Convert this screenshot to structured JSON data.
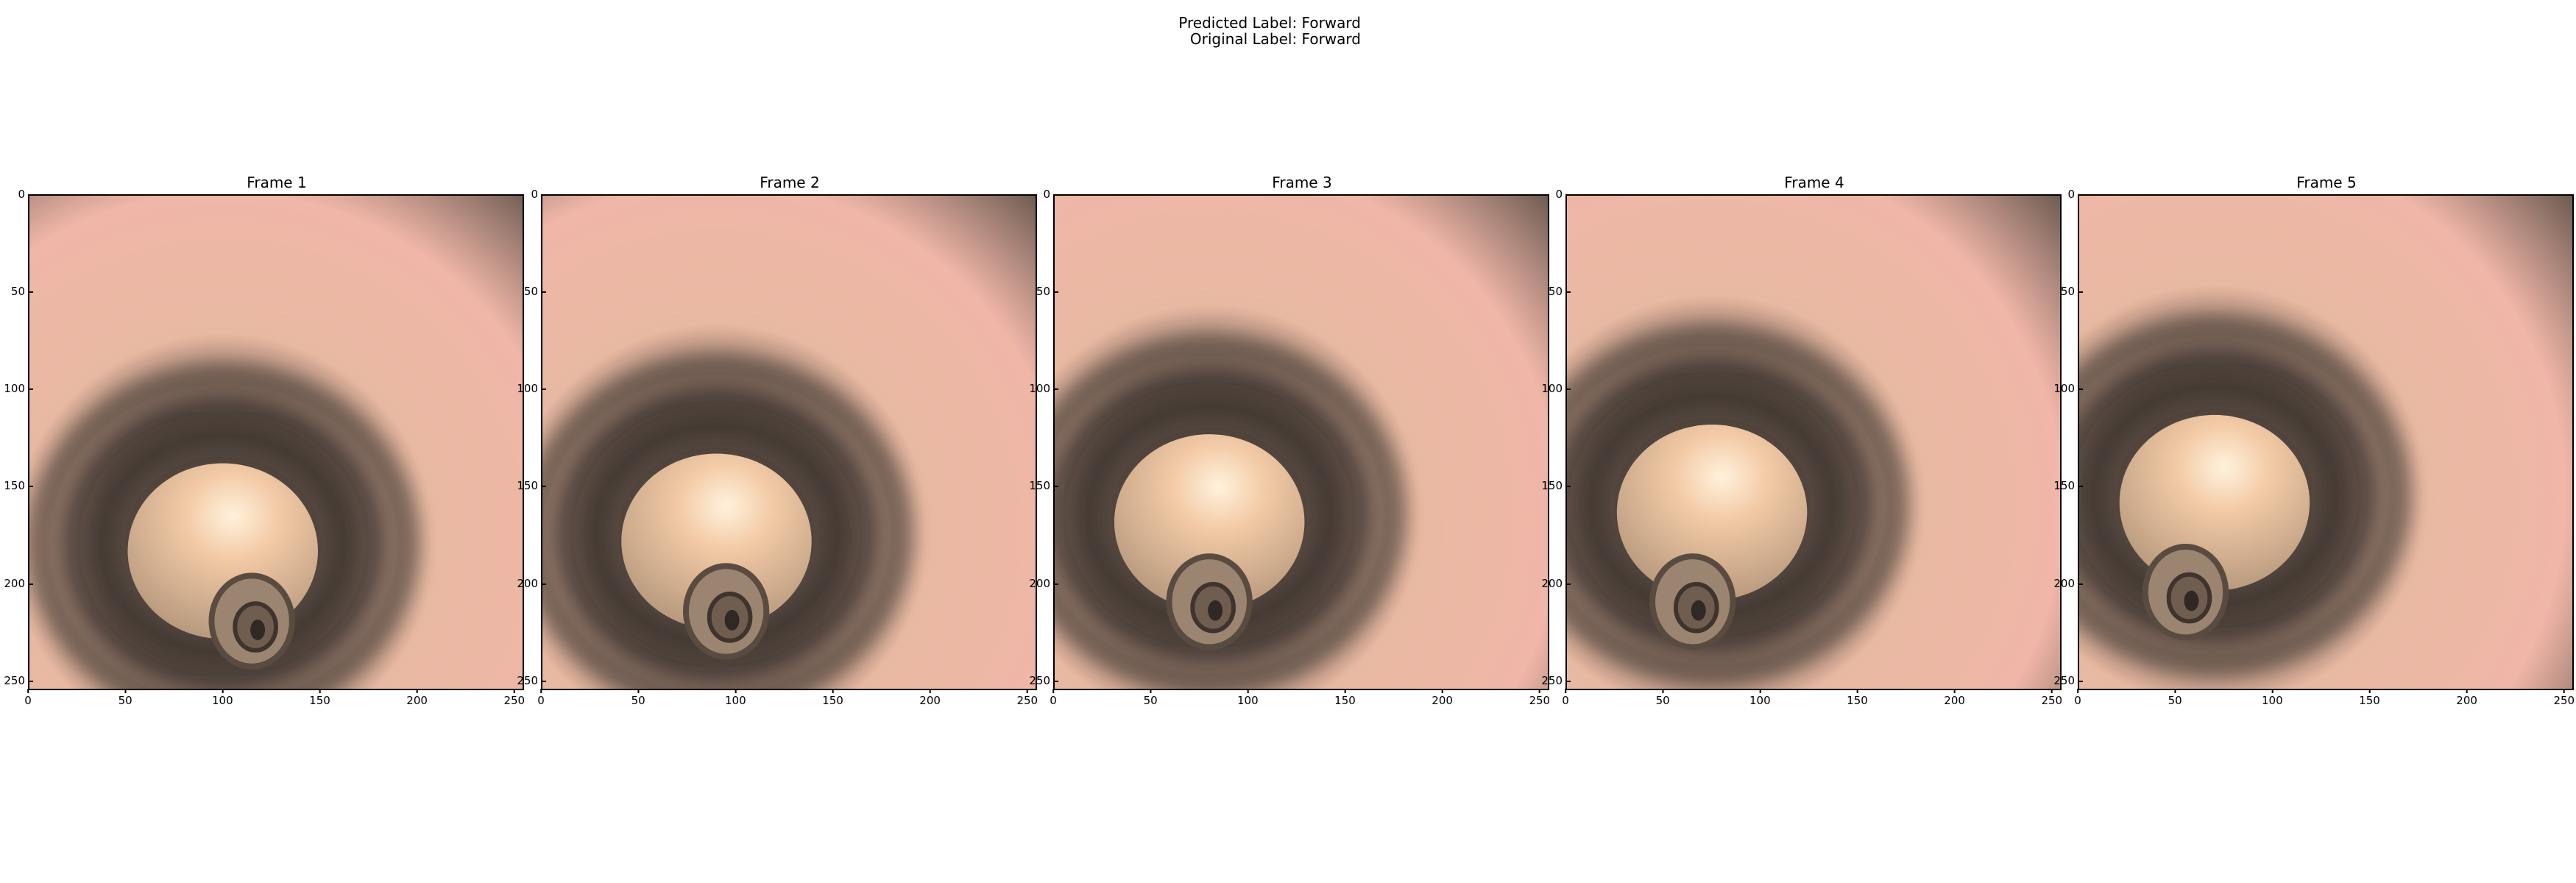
{
  "header": {
    "predicted_label": "Predicted Label: Forward",
    "original_label": "Original Label: Forward"
  },
  "axis": {
    "x_ticks": [
      "0",
      "50",
      "100",
      "150",
      "200",
      "250"
    ],
    "y_ticks": [
      "0",
      "50",
      "100",
      "150",
      "200",
      "250"
    ],
    "x_tick_values": [
      0,
      50,
      100,
      150,
      200,
      250
    ],
    "y_tick_values": [
      0,
      50,
      100,
      150,
      200,
      250
    ],
    "range": [
      0,
      255
    ]
  },
  "frames": [
    {
      "title": "Frame 1",
      "lumen_center": [
        100,
        180
      ],
      "inner_center": [
        115,
        220
      ]
    },
    {
      "title": "Frame 2",
      "lumen_center": [
        90,
        175
      ],
      "inner_center": [
        95,
        215
      ]
    },
    {
      "title": "Frame 3",
      "lumen_center": [
        80,
        165
      ],
      "inner_center": [
        80,
        210
      ]
    },
    {
      "title": "Frame 4",
      "lumen_center": [
        75,
        160
      ],
      "inner_center": [
        65,
        210
      ]
    },
    {
      "title": "Frame 5",
      "lumen_center": [
        70,
        155
      ],
      "inner_center": [
        55,
        205
      ]
    }
  ],
  "colors": {
    "wall_light": "#e8b9a2",
    "wall_pink": "#f0b6a8",
    "wall_dark": "#3b3531",
    "lumen": "#f3caa6",
    "lumen_highlight": "#fff2dc"
  }
}
